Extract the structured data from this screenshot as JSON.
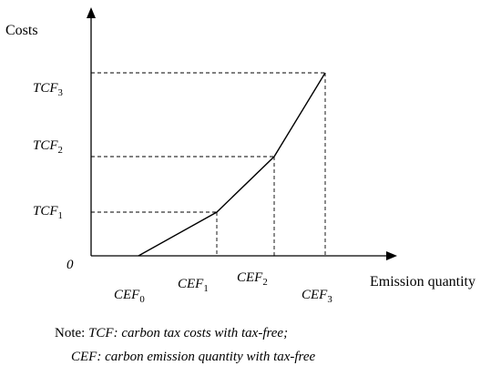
{
  "chart_data": {
    "type": "line",
    "ylabel": "Costs",
    "xlabel": "Emission quantity",
    "origin_label": "0",
    "x_ticks": [
      {
        "base": "CEF",
        "sub": "0"
      },
      {
        "base": "CEF",
        "sub": "1"
      },
      {
        "base": "CEF",
        "sub": "2"
      },
      {
        "base": "CEF",
        "sub": "3"
      }
    ],
    "y_ticks": [
      {
        "base": "TCF",
        "sub": "1"
      },
      {
        "base": "TCF",
        "sub": "2"
      },
      {
        "base": "TCF",
        "sub": "3"
      }
    ],
    "points": [
      {
        "x": "CEF0",
        "y": "0"
      },
      {
        "x": "CEF1",
        "y": "TCF1"
      },
      {
        "x": "CEF2",
        "y": "TCF2"
      },
      {
        "x": "CEF3",
        "y": "TCF3"
      }
    ],
    "guides": "dashed",
    "grid": false
  },
  "note": {
    "prefix": "Note: ",
    "line1": "TCF: carbon tax costs with tax-free;",
    "line2": "CEF: carbon emission quantity with tax-free"
  }
}
